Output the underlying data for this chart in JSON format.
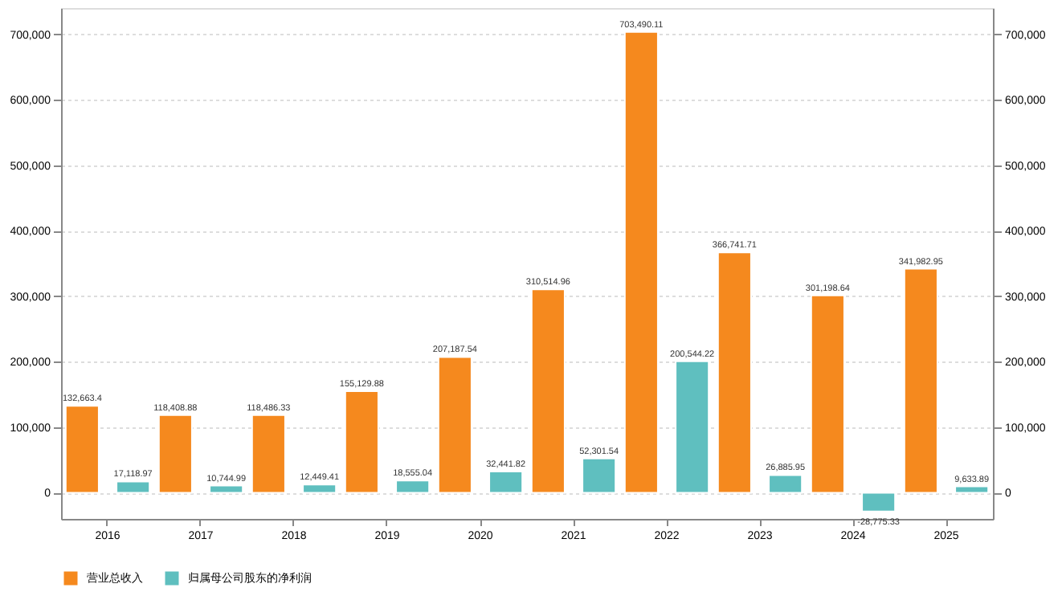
{
  "chart_data": {
    "type": "bar",
    "categories": [
      "2016",
      "2017",
      "2018",
      "2019",
      "2020",
      "2021",
      "2022",
      "2023",
      "2024",
      "2025"
    ],
    "series": [
      {
        "name": "营业总收入",
        "color": "#f5891e",
        "values": [
          132663.4,
          118408.88,
          118486.33,
          155129.88,
          207187.54,
          310514.96,
          703490.11,
          366741.71,
          301198.64,
          341982.95
        ],
        "value_labels": [
          "132,663.4",
          "118,408.88",
          "118,486.33",
          "155,129.88",
          "207,187.54",
          "310,514.96",
          "703,490.11",
          "366,741.71",
          "301,198.64",
          "341,982.95"
        ]
      },
      {
        "name": "归属母公司股东的净利润",
        "color": "#5fbfbf",
        "values": [
          17118.97,
          10744.99,
          12449.41,
          18555.04,
          32441.82,
          52301.54,
          200544.22,
          26885.95,
          -28775.33,
          9633.89
        ],
        "value_labels": [
          "17,118.97",
          "10,744.99",
          "12,449.41",
          "18,555.04",
          "32,441.82",
          "52,301.54",
          "200,544.22",
          "26,885.95",
          "-28,775.33",
          "9,633.89"
        ]
      }
    ],
    "ylim": [
      -40000,
      740000
    ],
    "yticks": [
      0,
      {
        "value": 100000,
        "label": "100,000"
      },
      {
        "value": 200000,
        "label": "200,000"
      },
      {
        "value": 300000,
        "label": "300,000"
      },
      {
        "value": 400000,
        "label": "400,000"
      },
      {
        "value": 500000,
        "label": "500,000"
      },
      {
        "value": 600000,
        "label": "600,000"
      },
      {
        "value": 700000,
        "label": "700,000"
      }
    ],
    "y2lim": [
      -40000,
      740000
    ],
    "y2ticks": [
      0,
      {
        "value": 100000,
        "label": "100,000"
      },
      {
        "value": 200000,
        "label": "200,000"
      },
      {
        "value": 300000,
        "label": "300,000"
      },
      {
        "value": 400000,
        "label": "400,000"
      },
      {
        "value": 500000,
        "label": "500,000"
      },
      {
        "value": 600000,
        "label": "600,000"
      },
      {
        "value": 700000,
        "label": "700,000"
      }
    ],
    "grid": "y",
    "legend": "bottom"
  }
}
